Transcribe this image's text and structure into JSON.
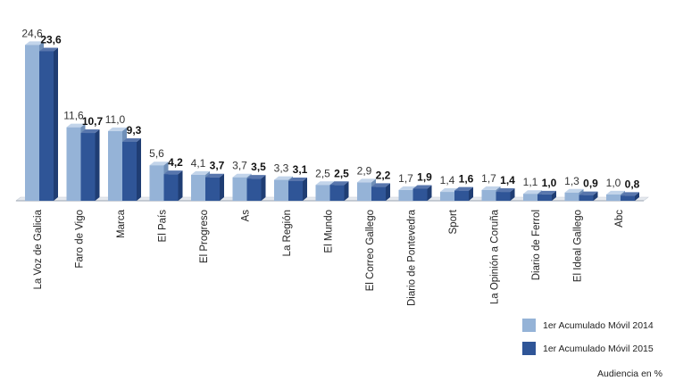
{
  "chart_data": {
    "type": "bar",
    "categories": [
      "La Voz de Galicia",
      "Faro de Vigo",
      "Marca",
      "El País",
      "El Progreso",
      "As",
      "La Región",
      "El Mundo",
      "El Correo Gallego",
      "Diario de Pontevedra",
      "Sport",
      "La Opinión a Coruña",
      "Diario de Ferrol",
      "El Ideal Gallego",
      "Abc"
    ],
    "series": [
      {
        "name": "1er Acumulado Móvil 2014",
        "color": "#95b3d7",
        "values": [
          24.6,
          11.6,
          11.0,
          5.6,
          4.1,
          3.7,
          3.3,
          2.5,
          2.9,
          1.7,
          1.4,
          1.7,
          1.1,
          1.3,
          1.0
        ],
        "labels": [
          "24,6",
          "11,6",
          "11,0",
          "5,6",
          "4,1",
          "3,7",
          "3,3",
          "2,5",
          "2,9",
          "1,7",
          "1,4",
          "1,7",
          "1,1",
          "1,3",
          "1,0"
        ]
      },
      {
        "name": "1er Acumulado Móvil 2015",
        "color": "#2f5597",
        "values": [
          23.6,
          10.7,
          9.3,
          4.2,
          3.7,
          3.5,
          3.1,
          2.5,
          2.2,
          1.9,
          1.6,
          1.4,
          1.0,
          0.9,
          0.8
        ],
        "labels": [
          "23,6",
          "10,7",
          "9,3",
          "4,2",
          "3,7",
          "3,5",
          "3,1",
          "2,5",
          "2,2",
          "1,9",
          "1,6",
          "1,4",
          "1,0",
          "0,9",
          "0,8"
        ]
      }
    ],
    "legend_position": "bottom-right",
    "unit_note": "Audiencia en %",
    "ylim": [
      0,
      25
    ]
  }
}
